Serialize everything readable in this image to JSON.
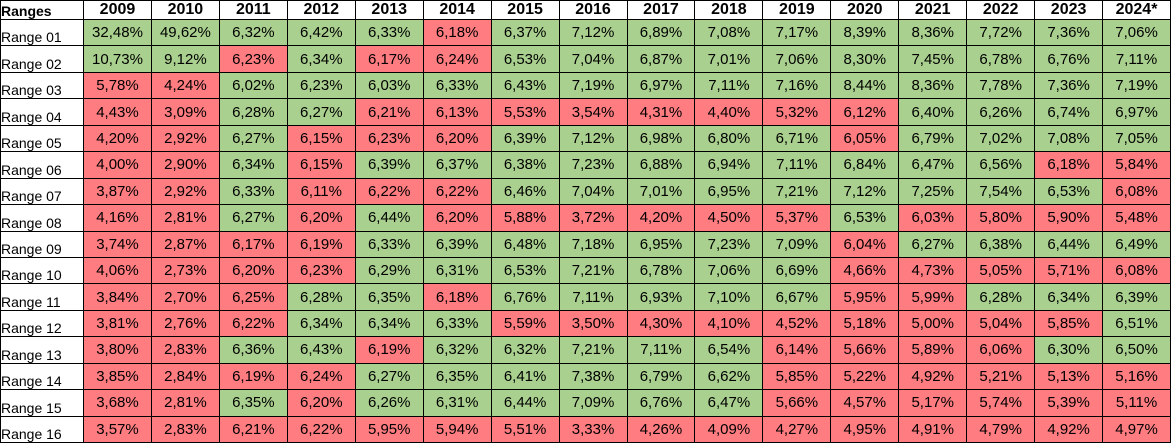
{
  "colors": {
    "g": "#A9D08E",
    "r": "#FF7C80",
    "border": "#000000",
    "header_bg": "#FFFFFF",
    "text": "#000000"
  },
  "chart_data": {
    "type": "table",
    "title": "",
    "value_format": "percent_comma_2dp",
    "columns": [
      "Ranges",
      "2009",
      "2010",
      "2011",
      "2012",
      "2013",
      "2014",
      "2015",
      "2016",
      "2017",
      "2018",
      "2019",
      "2020",
      "2021",
      "2022",
      "2023",
      "2024*"
    ],
    "rows": [
      {
        "label": "Range 01",
        "values": [
          32.48,
          49.62,
          6.32,
          6.42,
          6.33,
          6.18,
          6.37,
          7.12,
          6.89,
          7.08,
          7.17,
          8.39,
          8.36,
          7.72,
          7.36,
          7.06
        ],
        "colors": [
          "g",
          "g",
          "g",
          "g",
          "g",
          "r",
          "g",
          "g",
          "g",
          "g",
          "g",
          "g",
          "g",
          "g",
          "g",
          "g"
        ]
      },
      {
        "label": "Range 02",
        "values": [
          10.73,
          9.12,
          6.23,
          6.34,
          6.17,
          6.24,
          6.53,
          7.04,
          6.87,
          7.01,
          7.06,
          8.3,
          7.45,
          6.78,
          6.76,
          7.11
        ],
        "colors": [
          "g",
          "g",
          "r",
          "g",
          "r",
          "r",
          "g",
          "g",
          "g",
          "g",
          "g",
          "g",
          "g",
          "g",
          "g",
          "g"
        ]
      },
      {
        "label": "Range 03",
        "values": [
          5.78,
          4.24,
          6.02,
          6.23,
          6.03,
          6.33,
          6.43,
          7.19,
          6.97,
          7.11,
          7.16,
          8.44,
          8.36,
          7.78,
          7.36,
          7.19
        ],
        "colors": [
          "r",
          "r",
          "g",
          "g",
          "g",
          "g",
          "g",
          "g",
          "g",
          "g",
          "g",
          "g",
          "g",
          "g",
          "g",
          "g"
        ]
      },
      {
        "label": "Range 04",
        "values": [
          4.43,
          3.09,
          6.28,
          6.27,
          6.21,
          6.13,
          5.53,
          3.54,
          4.31,
          4.4,
          5.32,
          6.12,
          6.4,
          6.26,
          6.74,
          6.97
        ],
        "colors": [
          "r",
          "r",
          "g",
          "g",
          "r",
          "r",
          "r",
          "r",
          "r",
          "r",
          "r",
          "r",
          "g",
          "g",
          "g",
          "g"
        ]
      },
      {
        "label": "Range 05",
        "values": [
          4.2,
          2.92,
          6.27,
          6.15,
          6.23,
          6.2,
          6.39,
          7.12,
          6.98,
          6.8,
          6.71,
          6.05,
          6.79,
          7.02,
          7.08,
          7.05
        ],
        "colors": [
          "r",
          "r",
          "g",
          "r",
          "r",
          "r",
          "g",
          "g",
          "g",
          "g",
          "g",
          "r",
          "g",
          "g",
          "g",
          "g"
        ]
      },
      {
        "label": "Range 06",
        "values": [
          4.0,
          2.9,
          6.34,
          6.15,
          6.39,
          6.37,
          6.38,
          7.23,
          6.88,
          6.94,
          7.11,
          6.84,
          6.47,
          6.56,
          6.18,
          5.84
        ],
        "colors": [
          "r",
          "r",
          "g",
          "r",
          "g",
          "g",
          "g",
          "g",
          "g",
          "g",
          "g",
          "g",
          "g",
          "g",
          "r",
          "r"
        ]
      },
      {
        "label": "Range 07",
        "values": [
          3.87,
          2.92,
          6.33,
          6.11,
          6.22,
          6.22,
          6.46,
          7.04,
          7.01,
          6.95,
          7.21,
          7.12,
          7.25,
          7.54,
          6.53,
          6.08
        ],
        "colors": [
          "r",
          "r",
          "g",
          "r",
          "r",
          "r",
          "g",
          "g",
          "g",
          "g",
          "g",
          "g",
          "g",
          "g",
          "g",
          "r"
        ]
      },
      {
        "label": "Range 08",
        "values": [
          4.16,
          2.81,
          6.27,
          6.2,
          6.44,
          6.2,
          5.88,
          3.72,
          4.2,
          4.5,
          5.37,
          6.53,
          6.03,
          5.8,
          5.9,
          5.48
        ],
        "colors": [
          "r",
          "r",
          "g",
          "r",
          "g",
          "r",
          "r",
          "r",
          "r",
          "r",
          "r",
          "g",
          "r",
          "r",
          "r",
          "r"
        ]
      },
      {
        "label": "Range 09",
        "values": [
          3.74,
          2.87,
          6.17,
          6.19,
          6.33,
          6.39,
          6.48,
          7.18,
          6.95,
          7.23,
          7.09,
          6.04,
          6.27,
          6.38,
          6.44,
          6.49
        ],
        "colors": [
          "r",
          "r",
          "r",
          "r",
          "g",
          "g",
          "g",
          "g",
          "g",
          "g",
          "g",
          "r",
          "g",
          "g",
          "g",
          "g"
        ]
      },
      {
        "label": "Range 10",
        "values": [
          4.06,
          2.73,
          6.2,
          6.23,
          6.29,
          6.31,
          6.53,
          7.21,
          6.78,
          7.06,
          6.69,
          4.66,
          4.73,
          5.05,
          5.71,
          6.08
        ],
        "colors": [
          "r",
          "r",
          "r",
          "r",
          "g",
          "g",
          "g",
          "g",
          "g",
          "g",
          "g",
          "r",
          "r",
          "r",
          "r",
          "r"
        ]
      },
      {
        "label": "Range 11",
        "values": [
          3.84,
          2.7,
          6.25,
          6.28,
          6.35,
          6.18,
          6.76,
          7.11,
          6.93,
          7.1,
          6.67,
          5.95,
          5.99,
          6.28,
          6.34,
          6.39
        ],
        "colors": [
          "r",
          "r",
          "r",
          "g",
          "g",
          "r",
          "g",
          "g",
          "g",
          "g",
          "g",
          "r",
          "r",
          "g",
          "g",
          "g"
        ]
      },
      {
        "label": "Range 12",
        "values": [
          3.81,
          2.76,
          6.22,
          6.34,
          6.34,
          6.33,
          5.59,
          3.5,
          4.3,
          4.1,
          4.52,
          5.18,
          5.0,
          5.04,
          5.85,
          6.51
        ],
        "colors": [
          "r",
          "r",
          "r",
          "g",
          "g",
          "g",
          "r",
          "r",
          "r",
          "r",
          "r",
          "r",
          "r",
          "r",
          "r",
          "g"
        ]
      },
      {
        "label": "Range 13",
        "values": [
          3.8,
          2.83,
          6.36,
          6.43,
          6.19,
          6.32,
          6.32,
          7.21,
          7.11,
          6.54,
          6.14,
          5.66,
          5.89,
          6.06,
          6.3,
          6.5
        ],
        "colors": [
          "r",
          "r",
          "g",
          "g",
          "r",
          "g",
          "g",
          "g",
          "g",
          "g",
          "r",
          "r",
          "r",
          "r",
          "g",
          "g"
        ]
      },
      {
        "label": "Range 14",
        "values": [
          3.85,
          2.84,
          6.19,
          6.24,
          6.27,
          6.35,
          6.41,
          7.38,
          6.79,
          6.62,
          5.85,
          5.22,
          4.92,
          5.21,
          5.13,
          5.16
        ],
        "colors": [
          "r",
          "r",
          "r",
          "r",
          "g",
          "g",
          "g",
          "g",
          "g",
          "g",
          "r",
          "r",
          "r",
          "r",
          "r",
          "r"
        ]
      },
      {
        "label": "Range 15",
        "values": [
          3.68,
          2.81,
          6.35,
          6.2,
          6.26,
          6.31,
          6.44,
          7.09,
          6.76,
          6.47,
          5.66,
          4.57,
          5.17,
          5.74,
          5.39,
          5.11
        ],
        "colors": [
          "r",
          "r",
          "g",
          "r",
          "g",
          "g",
          "g",
          "g",
          "g",
          "g",
          "r",
          "r",
          "r",
          "r",
          "r",
          "r"
        ]
      },
      {
        "label": "Range 16",
        "values": [
          3.57,
          2.83,
          6.21,
          6.22,
          5.95,
          5.94,
          5.51,
          3.33,
          4.26,
          4.09,
          4.27,
          4.95,
          4.91,
          4.79,
          4.92,
          4.97
        ],
        "colors": [
          "r",
          "r",
          "r",
          "r",
          "r",
          "r",
          "r",
          "r",
          "r",
          "r",
          "r",
          "r",
          "r",
          "r",
          "r",
          "r"
        ]
      }
    ]
  }
}
